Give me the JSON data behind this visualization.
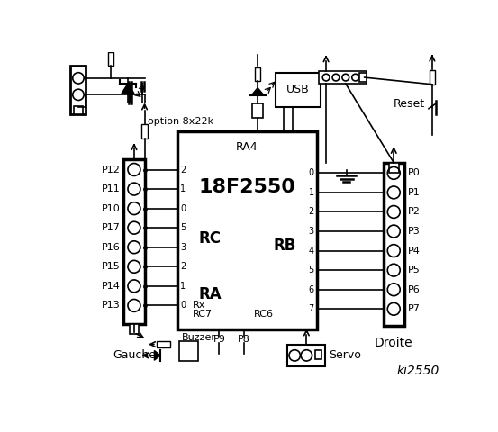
{
  "title": "ki2550",
  "bg_color": "#ffffff",
  "chip_label": "18F2550",
  "chip_sublabel": "RA4",
  "left_connector_pins": [
    "P12",
    "P11",
    "P10",
    "P17",
    "P16",
    "P15",
    "P14",
    "P13"
  ],
  "left_rc_labels": [
    "2",
    "1",
    "0",
    "5",
    "3",
    "2",
    "1",
    "0"
  ],
  "right_rb_labels": [
    "0",
    "1",
    "2",
    "3",
    "4",
    "5",
    "6",
    "7"
  ],
  "right_p_labels": [
    "P0",
    "P1",
    "P2",
    "P3",
    "P4",
    "P5",
    "P6",
    "P7"
  ],
  "option_label": "option 8x22k",
  "droite_label": "Droite",
  "gauche_label": "Gauche",
  "rc_label": "RC",
  "ra_label": "RA",
  "rb_label": "RB",
  "rx_label": "Rx",
  "rc7_label": "RC7",
  "rc6_label": "RC6",
  "usb_label": "USB",
  "reset_label": "Reset",
  "buzzer_label": "Buzzer",
  "servo_label": "Servo",
  "p9_label": "P9",
  "p8_label": "P8"
}
